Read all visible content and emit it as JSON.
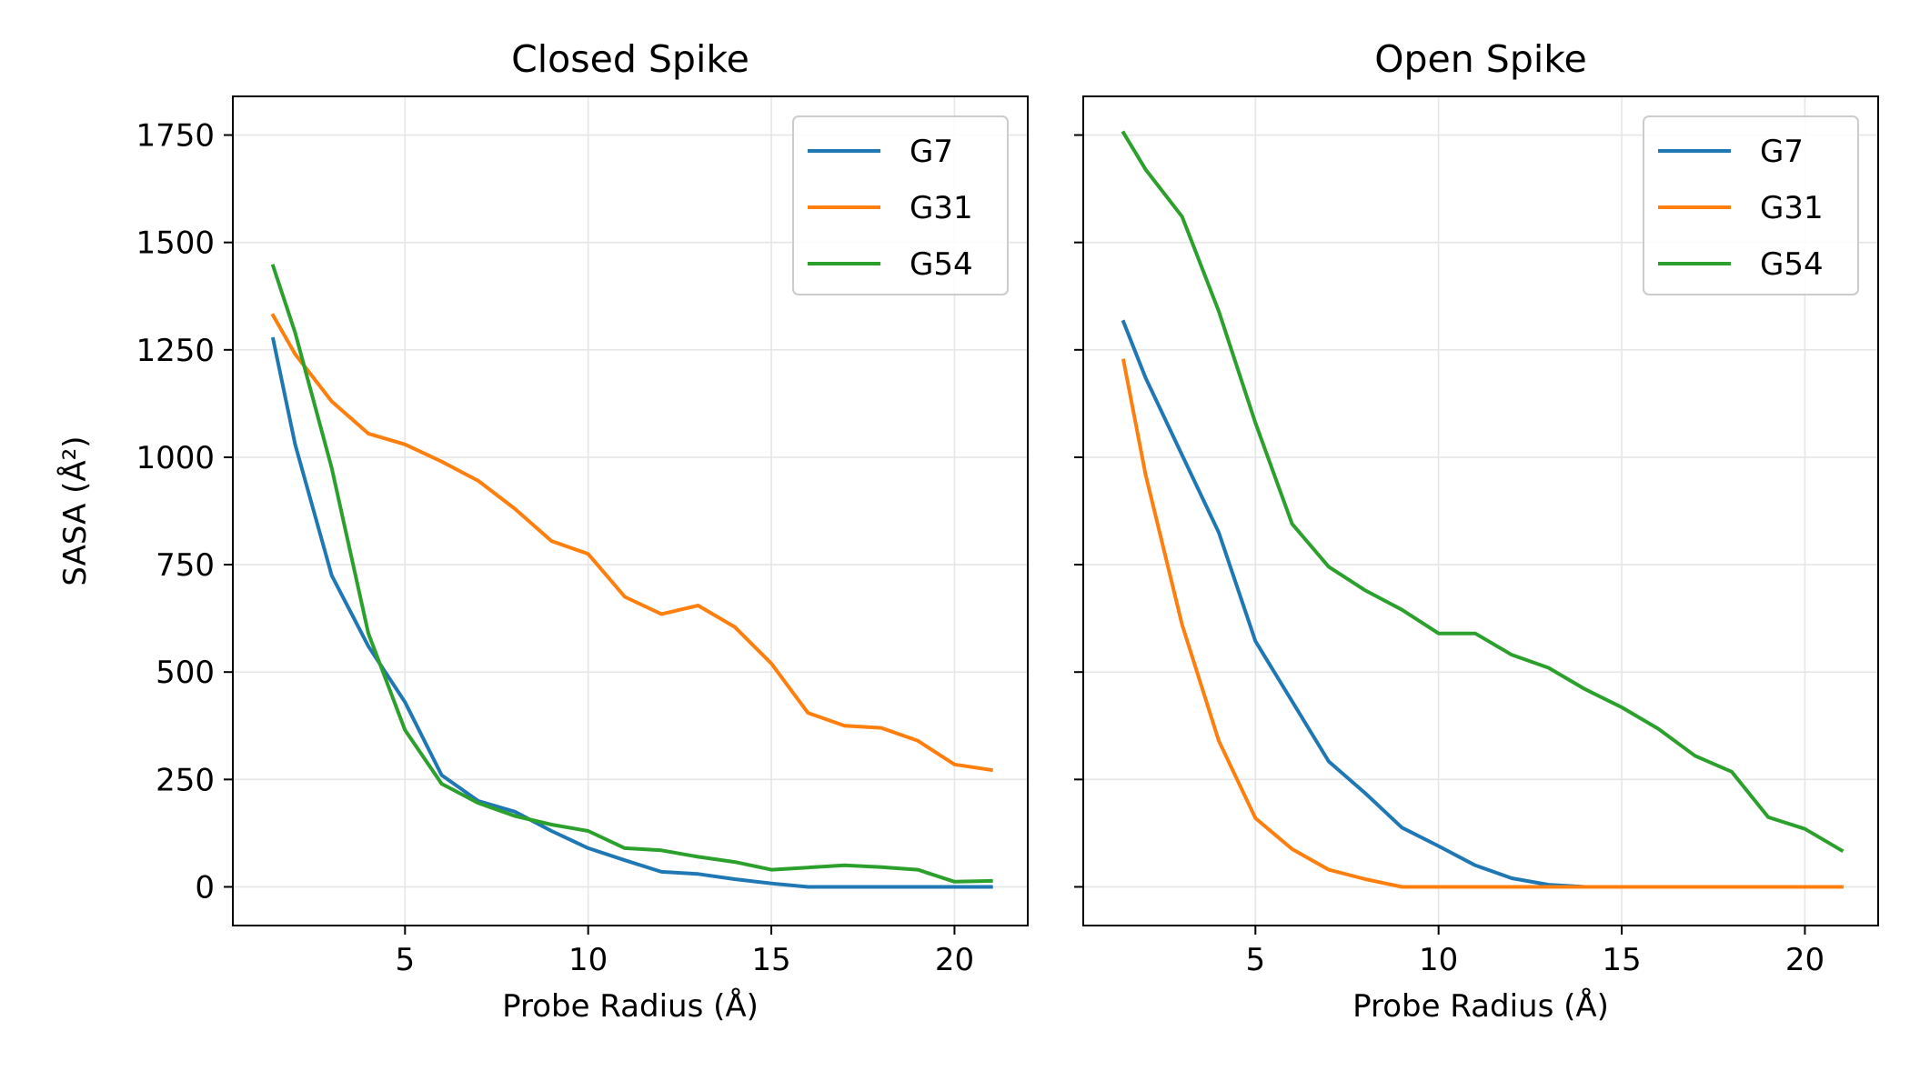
{
  "chart_data": [
    {
      "type": "line",
      "title": "Closed Spike",
      "xlabel": "Probe Radius (Å)",
      "ylabel": "SASA (Å²)",
      "xlim": [
        0.3,
        22
      ],
      "ylim": [
        -90,
        1840
      ],
      "xticks": [
        5,
        10,
        15,
        20
      ],
      "yticks": [
        0,
        250,
        500,
        750,
        1000,
        1250,
        1500,
        1750
      ],
      "grid": true,
      "legend": "top-right",
      "x": [
        1.4,
        2,
        3,
        4,
        5,
        6,
        7,
        8,
        9,
        10,
        11,
        12,
        13,
        14,
        15,
        16,
        17,
        18,
        19,
        20,
        21
      ],
      "series": [
        {
          "name": "G7",
          "color": "#1f77b4",
          "values": [
            1275,
            1030,
            725,
            560,
            430,
            260,
            200,
            175,
            130,
            90,
            62,
            35,
            30,
            18,
            8,
            0,
            0,
            0,
            0,
            0,
            0
          ]
        },
        {
          "name": "G31",
          "color": "#ff7f0e",
          "values": [
            1330,
            1240,
            1130,
            1055,
            1030,
            990,
            945,
            880,
            805,
            775,
            675,
            635,
            655,
            605,
            520,
            405,
            375,
            370,
            340,
            285,
            272
          ]
        },
        {
          "name": "G54",
          "color": "#2ca02c",
          "values": [
            1445,
            1290,
            975,
            590,
            365,
            240,
            195,
            165,
            145,
            130,
            90,
            85,
            70,
            58,
            40,
            45,
            50,
            46,
            40,
            12,
            14
          ]
        }
      ]
    },
    {
      "type": "line",
      "title": "Open Spike",
      "xlabel": "Probe Radius (Å)",
      "ylabel": "",
      "xlim": [
        0.3,
        22
      ],
      "ylim": [
        -90,
        1840
      ],
      "xticks": [
        5,
        10,
        15,
        20
      ],
      "yticks": [
        0,
        250,
        500,
        750,
        1000,
        1250,
        1500,
        1750
      ],
      "grid": true,
      "legend": "top-right",
      "x": [
        1.4,
        2,
        3,
        4,
        5,
        6,
        7,
        8,
        9,
        10,
        11,
        12,
        13,
        14,
        15,
        16,
        17,
        18,
        19,
        20,
        21
      ],
      "series": [
        {
          "name": "G7",
          "color": "#1f77b4",
          "values": [
            1315,
            1185,
            1005,
            825,
            572,
            432,
            292,
            218,
            138,
            95,
            50,
            20,
            5,
            0,
            0,
            0,
            0,
            0,
            0,
            0,
            0
          ]
        },
        {
          "name": "G31",
          "color": "#ff7f0e",
          "values": [
            1225,
            960,
            610,
            340,
            160,
            88,
            40,
            18,
            0,
            0,
            0,
            0,
            0,
            0,
            0,
            0,
            0,
            0,
            0,
            0,
            0
          ]
        },
        {
          "name": "G54",
          "color": "#2ca02c",
          "values": [
            1755,
            1670,
            1560,
            1340,
            1080,
            845,
            745,
            690,
            645,
            590,
            590,
            540,
            510,
            460,
            418,
            368,
            305,
            268,
            162,
            135,
            85
          ]
        }
      ]
    }
  ]
}
